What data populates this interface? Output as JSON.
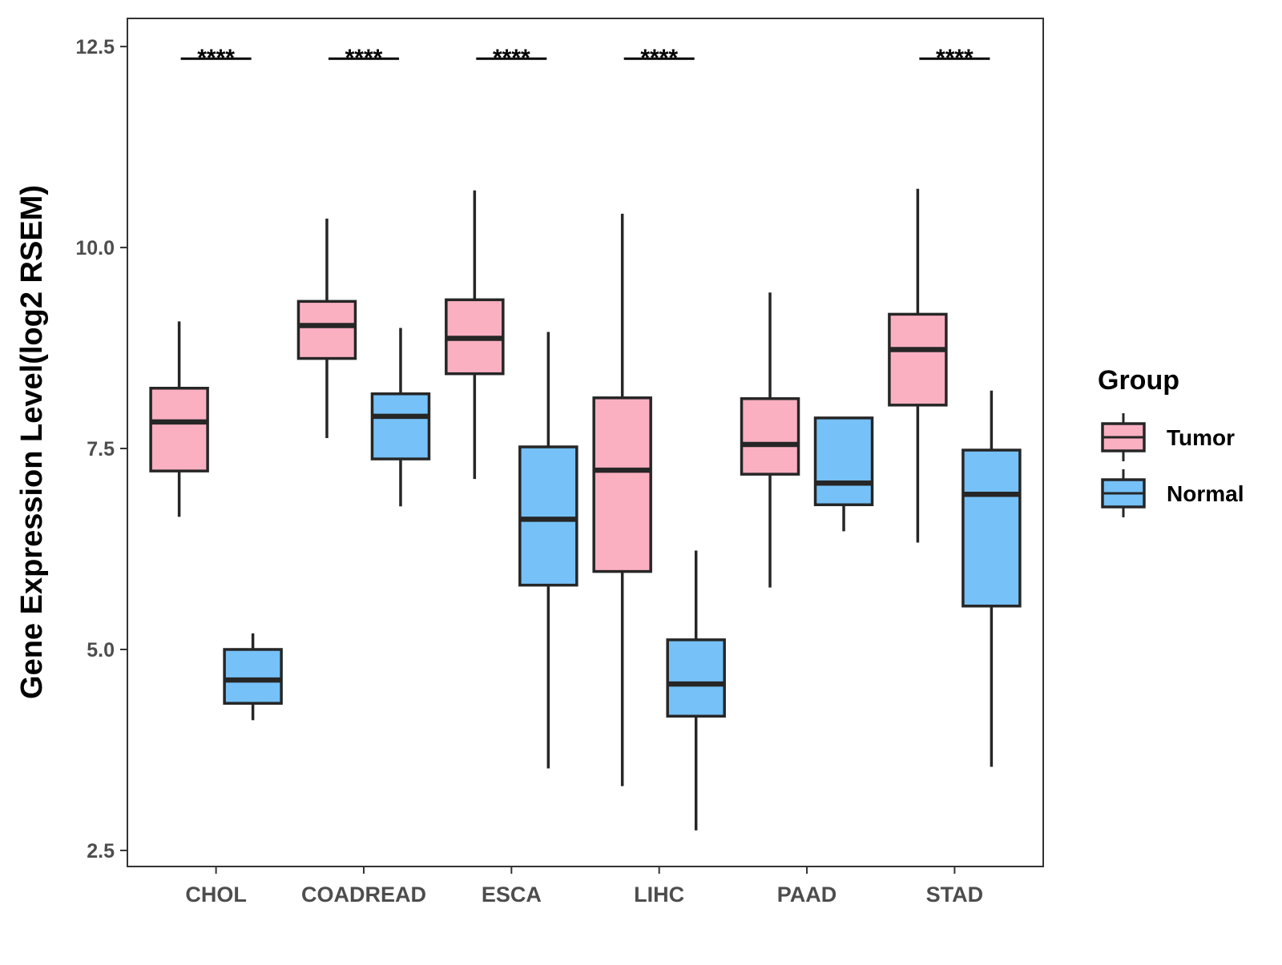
{
  "chart_data": {
    "type": "boxplot",
    "title": "",
    "xlabel": "",
    "ylabel": "Gene Expression Level(log2 RSEM)",
    "ylim": [
      2.3,
      12.85
    ],
    "yticks": [
      {
        "value": 2.5,
        "label": "2.5"
      },
      {
        "value": 5.0,
        "label": "5.0"
      },
      {
        "value": 7.5,
        "label": "7.5"
      },
      {
        "value": 10.0,
        "label": "10.0"
      },
      {
        "value": 12.5,
        "label": "12.5"
      }
    ],
    "grid": false,
    "legend": {
      "title": "Group",
      "position": "right",
      "entries": [
        {
          "name": "Tumor",
          "color": "#fbb0c2"
        },
        {
          "name": "Normal",
          "color": "#76c1f8"
        }
      ]
    },
    "categories": [
      "CHOL",
      "COADREAD",
      "ESCA",
      "LIHC",
      "PAAD",
      "STAD"
    ],
    "series": [
      {
        "name": "Tumor",
        "color": "#fbb0c2",
        "boxes": [
          {
            "min": 6.65,
            "q1": 7.22,
            "median": 7.83,
            "q3": 8.25,
            "max": 9.08
          },
          {
            "min": 7.63,
            "q1": 8.62,
            "median": 9.03,
            "q3": 9.33,
            "max": 10.36
          },
          {
            "min": 7.12,
            "q1": 8.43,
            "median": 8.87,
            "q3": 9.35,
            "max": 10.71
          },
          {
            "min": 3.3,
            "q1": 5.97,
            "median": 7.23,
            "q3": 8.13,
            "max": 10.42
          },
          {
            "min": 5.77,
            "q1": 7.18,
            "median": 7.55,
            "q3": 8.12,
            "max": 9.44
          },
          {
            "min": 6.33,
            "q1": 8.04,
            "median": 8.73,
            "q3": 9.17,
            "max": 10.73
          }
        ]
      },
      {
        "name": "Normal",
        "color": "#76c1f8",
        "boxes": [
          {
            "min": 4.12,
            "q1": 4.33,
            "median": 4.62,
            "q3": 5.0,
            "max": 5.2
          },
          {
            "min": 6.78,
            "q1": 7.37,
            "median": 7.9,
            "q3": 8.18,
            "max": 9.0
          },
          {
            "min": 3.52,
            "q1": 5.8,
            "median": 6.62,
            "q3": 7.52,
            "max": 8.95
          },
          {
            "min": 2.75,
            "q1": 4.17,
            "median": 4.57,
            "q3": 5.12,
            "max": 6.23
          },
          {
            "min": 6.47,
            "q1": 6.8,
            "median": 7.07,
            "q3": 7.88,
            "max": 7.88
          },
          {
            "min": 3.54,
            "q1": 5.54,
            "median": 6.93,
            "q3": 7.48,
            "max": 8.22
          }
        ]
      }
    ],
    "significance": [
      {
        "category": "CHOL",
        "label": "****"
      },
      {
        "category": "COADREAD",
        "label": "****"
      },
      {
        "category": "ESCA",
        "label": "****"
      },
      {
        "category": "LIHC",
        "label": "****"
      },
      {
        "category": "PAAD",
        "label": ""
      },
      {
        "category": "STAD",
        "label": "****"
      }
    ],
    "significance_y": 12.35
  }
}
